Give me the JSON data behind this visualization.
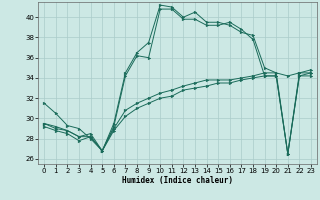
{
  "xlabel": "Humidex (Indice chaleur)",
  "xlim": [
    -0.5,
    23.5
  ],
  "ylim": [
    25.5,
    41.5
  ],
  "xticks": [
    0,
    1,
    2,
    3,
    4,
    5,
    6,
    7,
    8,
    9,
    10,
    11,
    12,
    13,
    14,
    15,
    16,
    17,
    18,
    19,
    20,
    21,
    22,
    23
  ],
  "yticks": [
    26,
    28,
    30,
    32,
    34,
    36,
    38,
    40
  ],
  "bg_color": "#cce8e4",
  "grid_color": "#aaccca",
  "line_color": "#1a6b5a",
  "curve1_y": [
    31.5,
    30.5,
    29.3,
    29.0,
    28.0,
    26.8,
    29.5,
    34.5,
    36.5,
    37.5,
    41.2,
    41.0,
    40.0,
    40.5,
    39.5,
    39.5,
    39.2,
    38.5,
    38.2,
    35.0,
    34.5,
    34.2,
    34.5,
    34.5
  ],
  "curve2_y": [
    29.5,
    29.0,
    28.8,
    28.2,
    28.2,
    26.8,
    29.2,
    34.2,
    36.2,
    36.0,
    40.8,
    40.8,
    39.8,
    39.8,
    39.2,
    39.2,
    39.5,
    38.8,
    37.8,
    34.2,
    34.2,
    26.5,
    34.2,
    34.2
  ],
  "curve3_y": [
    29.5,
    29.2,
    28.8,
    28.2,
    28.5,
    26.8,
    29.0,
    30.8,
    31.5,
    32.0,
    32.5,
    32.8,
    33.2,
    33.5,
    33.8,
    33.8,
    33.8,
    34.0,
    34.2,
    34.5,
    34.5,
    26.5,
    34.5,
    34.8
  ],
  "curve4_y": [
    29.2,
    28.8,
    28.5,
    27.8,
    28.2,
    26.8,
    28.8,
    30.2,
    31.0,
    31.5,
    32.0,
    32.2,
    32.8,
    33.0,
    33.2,
    33.5,
    33.5,
    33.8,
    34.0,
    34.2,
    34.2,
    26.5,
    34.2,
    34.5
  ]
}
